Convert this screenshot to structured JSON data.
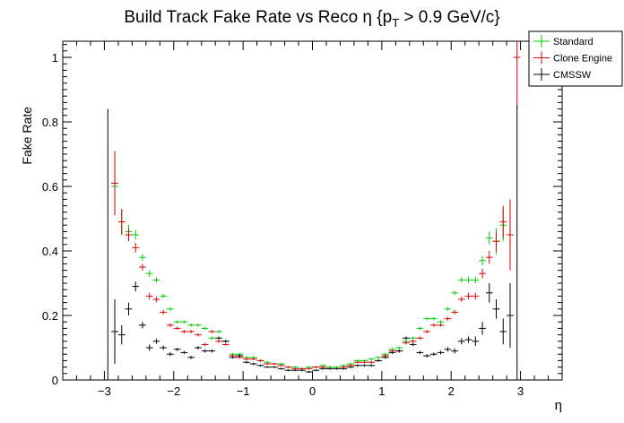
{
  "chart_data": {
    "type": "scatter",
    "title": "Build Track Fake Rate vs Reco η {p",
    "title_sub": "T",
    "title_tail": " > 0.9 GeV/c}",
    "xlabel": "η",
    "ylabel": "Fake Rate",
    "xlim": [
      -3.6,
      3.6
    ],
    "ylim": [
      0,
      1.05
    ],
    "xticks": [
      -3,
      -2,
      -1,
      0,
      1,
      2,
      3
    ],
    "xtick_labels": [
      "−3",
      "−2",
      "−1",
      "0",
      "1",
      "2",
      "3"
    ],
    "yticks": [
      0,
      0.2,
      0.4,
      0.6,
      0.8,
      1
    ],
    "ytick_labels": [
      "0",
      "0.2",
      "0.4",
      "0.6",
      "0.8",
      "1"
    ],
    "bin_width": 0.1,
    "grid": false,
    "legend_position": "top-right",
    "series": [
      {
        "name": "Standard",
        "color": "#00cc00",
        "x": [
          -2.85,
          -2.75,
          -2.65,
          -2.55,
          -2.45,
          -2.35,
          -2.25,
          -2.15,
          -2.05,
          -1.95,
          -1.85,
          -1.75,
          -1.65,
          -1.55,
          -1.45,
          -1.35,
          -1.25,
          -1.15,
          -1.05,
          -0.95,
          -0.85,
          -0.75,
          -0.65,
          -0.55,
          -0.45,
          -0.35,
          -0.25,
          -0.15,
          -0.05,
          0.05,
          0.15,
          0.25,
          0.35,
          0.45,
          0.55,
          0.65,
          0.75,
          0.85,
          0.95,
          1.05,
          1.15,
          1.25,
          1.35,
          1.45,
          1.55,
          1.65,
          1.75,
          1.85,
          1.95,
          2.05,
          2.15,
          2.25,
          2.35,
          2.45,
          2.55,
          2.65,
          2.75,
          2.85
        ],
        "y": [
          0.6,
          0.49,
          0.46,
          0.45,
          0.38,
          0.33,
          0.31,
          0.26,
          0.22,
          0.18,
          0.18,
          0.17,
          0.17,
          0.16,
          0.13,
          0.15,
          0.12,
          0.08,
          0.08,
          0.07,
          0.07,
          0.06,
          0.055,
          0.05,
          0.05,
          0.04,
          0.04,
          0.035,
          0.04,
          0.04,
          0.045,
          0.04,
          0.04,
          0.045,
          0.05,
          0.06,
          0.06,
          0.065,
          0.07,
          0.08,
          0.095,
          0.1,
          0.12,
          0.13,
          0.16,
          0.19,
          0.19,
          0.18,
          0.22,
          0.27,
          0.31,
          0.31,
          0.31,
          0.37,
          0.44,
          0.43,
          0.48,
          0.45
        ],
        "yerr": [
          0.08,
          0.04,
          0.02,
          0.015,
          0.01,
          0.01,
          0.008,
          0.007,
          0.006,
          0.005,
          0.005,
          0.005,
          0.005,
          0.005,
          0.005,
          0.005,
          0.004,
          0.004,
          0.004,
          0.004,
          0.004,
          0.004,
          0.003,
          0.003,
          0.003,
          0.003,
          0.003,
          0.003,
          0.003,
          0.003,
          0.003,
          0.003,
          0.003,
          0.003,
          0.003,
          0.003,
          0.004,
          0.004,
          0.004,
          0.004,
          0.004,
          0.004,
          0.005,
          0.005,
          0.005,
          0.005,
          0.005,
          0.005,
          0.006,
          0.007,
          0.008,
          0.01,
          0.01,
          0.015,
          0.02,
          0.04,
          0.05,
          0.1
        ]
      },
      {
        "name": "Clone Engine",
        "color": "#dd0000",
        "x": [
          -2.85,
          -2.75,
          -2.65,
          -2.55,
          -2.45,
          -2.35,
          -2.25,
          -2.15,
          -2.05,
          -1.95,
          -1.85,
          -1.75,
          -1.65,
          -1.55,
          -1.45,
          -1.35,
          -1.25,
          -1.15,
          -1.05,
          -0.95,
          -0.85,
          -0.75,
          -0.65,
          -0.55,
          -0.45,
          -0.35,
          -0.25,
          -0.15,
          -0.05,
          0.05,
          0.15,
          0.25,
          0.35,
          0.45,
          0.55,
          0.65,
          0.75,
          0.85,
          0.95,
          1.05,
          1.15,
          1.25,
          1.35,
          1.45,
          1.55,
          1.65,
          1.75,
          1.85,
          1.95,
          2.05,
          2.15,
          2.25,
          2.35,
          2.45,
          2.55,
          2.65,
          2.75,
          2.85,
          2.95
        ],
        "y": [
          0.61,
          0.49,
          0.45,
          0.41,
          0.35,
          0.26,
          0.25,
          0.21,
          0.17,
          0.16,
          0.15,
          0.15,
          0.14,
          0.11,
          0.15,
          0.12,
          0.11,
          0.075,
          0.07,
          0.065,
          0.065,
          0.06,
          0.05,
          0.05,
          0.045,
          0.04,
          0.035,
          0.035,
          0.035,
          0.04,
          0.04,
          0.035,
          0.035,
          0.04,
          0.045,
          0.055,
          0.055,
          0.055,
          0.06,
          0.075,
          0.09,
          0.09,
          0.115,
          0.12,
          0.13,
          0.15,
          0.17,
          0.17,
          0.19,
          0.21,
          0.25,
          0.26,
          0.26,
          0.33,
          0.38,
          0.43,
          0.49,
          0.45,
          1.0
        ],
        "yerr": [
          0.1,
          0.04,
          0.02,
          0.015,
          0.01,
          0.01,
          0.008,
          0.007,
          0.006,
          0.005,
          0.005,
          0.005,
          0.005,
          0.005,
          0.005,
          0.005,
          0.004,
          0.004,
          0.004,
          0.004,
          0.004,
          0.004,
          0.003,
          0.003,
          0.003,
          0.003,
          0.003,
          0.003,
          0.003,
          0.003,
          0.003,
          0.003,
          0.003,
          0.003,
          0.003,
          0.003,
          0.004,
          0.004,
          0.004,
          0.004,
          0.004,
          0.004,
          0.005,
          0.005,
          0.005,
          0.005,
          0.005,
          0.005,
          0.006,
          0.007,
          0.008,
          0.01,
          0.01,
          0.015,
          0.02,
          0.03,
          0.05,
          0.11,
          0.16
        ]
      },
      {
        "name": "CMSSW",
        "color": "#000000",
        "x": [
          -2.95,
          -2.85,
          -2.75,
          -2.65,
          -2.55,
          -2.45,
          -2.35,
          -2.25,
          -2.15,
          -2.05,
          -1.95,
          -1.85,
          -1.75,
          -1.65,
          -1.55,
          -1.45,
          -1.35,
          -1.25,
          -1.15,
          -1.05,
          -0.95,
          -0.85,
          -0.75,
          -0.65,
          -0.55,
          -0.45,
          -0.35,
          -0.25,
          -0.15,
          -0.05,
          0.05,
          0.15,
          0.25,
          0.35,
          0.45,
          0.55,
          0.65,
          0.75,
          0.85,
          0.95,
          1.05,
          1.15,
          1.25,
          1.35,
          1.45,
          1.55,
          1.65,
          1.75,
          1.85,
          1.95,
          2.05,
          2.15,
          2.25,
          2.35,
          2.45,
          2.55,
          2.65,
          2.75,
          2.85,
          2.95
        ],
        "y": [
          0.0,
          0.15,
          0.14,
          0.22,
          0.29,
          0.17,
          0.1,
          0.12,
          0.1,
          0.08,
          0.095,
          0.085,
          0.07,
          0.1,
          0.09,
          0.09,
          0.13,
          0.12,
          0.07,
          0.075,
          0.055,
          0.05,
          0.045,
          0.04,
          0.04,
          0.035,
          0.03,
          0.03,
          0.03,
          0.025,
          0.03,
          0.035,
          0.035,
          0.035,
          0.035,
          0.04,
          0.045,
          0.045,
          0.045,
          0.06,
          0.07,
          0.085,
          0.09,
          0.13,
          0.11,
          0.085,
          0.075,
          0.08,
          0.085,
          0.095,
          0.09,
          0.12,
          0.125,
          0.12,
          0.16,
          0.27,
          0.22,
          0.15,
          0.2,
          0.0
        ],
        "yerr": [
          0.84,
          0.1,
          0.03,
          0.02,
          0.015,
          0.01,
          0.01,
          0.008,
          0.007,
          0.006,
          0.005,
          0.005,
          0.005,
          0.005,
          0.005,
          0.005,
          0.005,
          0.004,
          0.004,
          0.004,
          0.004,
          0.004,
          0.003,
          0.003,
          0.003,
          0.003,
          0.003,
          0.003,
          0.003,
          0.003,
          0.003,
          0.003,
          0.003,
          0.003,
          0.003,
          0.003,
          0.004,
          0.004,
          0.004,
          0.004,
          0.004,
          0.004,
          0.005,
          0.005,
          0.005,
          0.005,
          0.005,
          0.005,
          0.006,
          0.007,
          0.008,
          0.01,
          0.01,
          0.015,
          0.02,
          0.03,
          0.03,
          0.04,
          0.1,
          0.85
        ]
      }
    ]
  }
}
